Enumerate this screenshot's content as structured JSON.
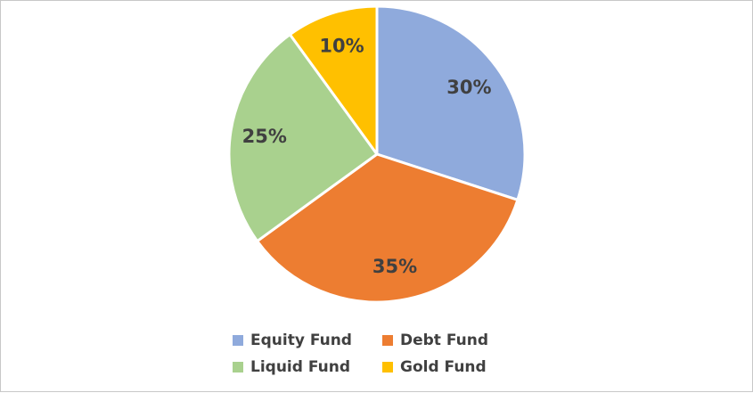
{
  "chart_data": {
    "type": "pie",
    "title": "",
    "categories": [
      "Equity Fund",
      "Debt Fund",
      "Liquid Fund",
      "Gold Fund"
    ],
    "values": [
      30,
      35,
      25,
      10
    ],
    "labels": [
      "30%",
      "35%",
      "25%",
      "10%"
    ],
    "colors": [
      "#8FAADC",
      "#ED7D31",
      "#A9D18E",
      "#FFC000"
    ],
    "legend_position": "bottom"
  }
}
